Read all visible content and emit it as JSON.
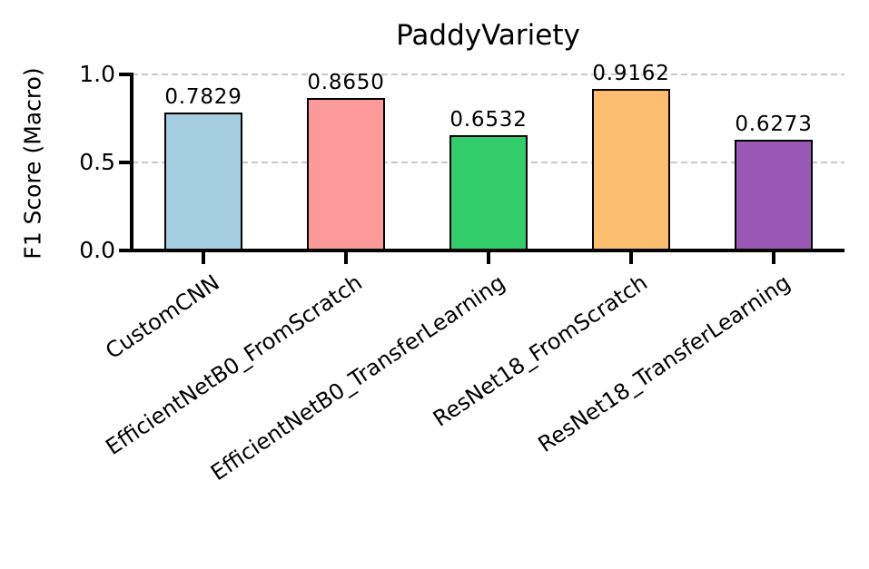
{
  "chart_data": {
    "type": "bar",
    "title": "PaddyVariety",
    "xlabel": "",
    "ylabel": "F1 Score (Macro)",
    "categories": [
      "CustomCNN",
      "EfficientNetB0_FromScratch",
      "EfficientNetB0_TransferLearning",
      "ResNet18_FromScratch",
      "ResNet18_TransferLearning"
    ],
    "values": [
      0.7829,
      0.865,
      0.6532,
      0.9162,
      0.6273
    ],
    "value_labels": [
      "0.7829",
      "0.8650",
      "0.6532",
      "0.9162",
      "0.6273"
    ],
    "bar_colors": [
      "#a6cee3",
      "#fb9a99",
      "#33cc6b",
      "#fcbe6e",
      "#9b59b6"
    ],
    "bar_edge_color": "#000000",
    "ylim": [
      0.0,
      1.0
    ],
    "yticks": {
      "labels": [
        "0.0",
        "0.5",
        "1.0"
      ],
      "values": [
        0.0,
        0.5,
        1.0
      ]
    },
    "grid": "horizontal-dashed",
    "gridline_color": "#c9c9c9",
    "legend_position": "none"
  }
}
